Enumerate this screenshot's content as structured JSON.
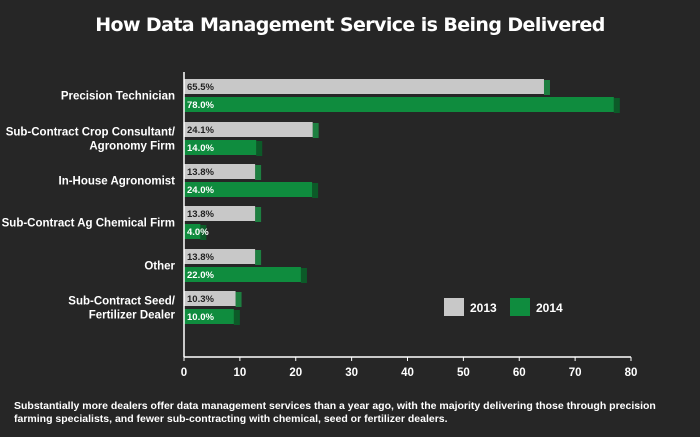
{
  "title": "How Data Management Service is Being Delivered",
  "footnote": "Substantially more dealers offer data management services than a year ago, with the majority delivering those through precision farming specialists, and fewer sub-contracting with chemical, seed or fertilizer dealers.",
  "colors": {
    "background": "#262626",
    "series_2013": "#c8c8c8",
    "series_2014": "#0f8c3e",
    "shade_2013": "#1d7f40",
    "shade_2014": "#0c5a28"
  },
  "chart_data": {
    "type": "bar",
    "orientation": "horizontal",
    "title": "How Data Management Service is Being Delivered",
    "categories": [
      [
        "Precision Technician"
      ],
      [
        "Sub-Contract Crop Consultant/",
        "Agronomy Firm"
      ],
      [
        "In-House Agronomist"
      ],
      [
        "Sub-Contract Ag Chemical Firm"
      ],
      [
        "Other"
      ],
      [
        "Sub-Contract Seed/",
        "Fertilizer Dealer"
      ]
    ],
    "series": [
      {
        "name": "2013",
        "values": [
          65.5,
          24.1,
          13.8,
          13.8,
          13.8,
          10.3
        ],
        "labels": [
          "65.5%",
          "24.1%",
          "13.8%",
          "13.8%",
          "13.8%",
          "10.3%"
        ]
      },
      {
        "name": "2014",
        "values": [
          78.0,
          14.0,
          24.0,
          4.0,
          22.0,
          10.0
        ],
        "labels": [
          "78.0%",
          "14.0%",
          "24.0%",
          "4.0%",
          "22.0%",
          "10.0%"
        ]
      }
    ],
    "xlim": [
      0,
      80
    ],
    "xticks": [
      "0",
      "10",
      "20",
      "30",
      "40",
      "50",
      "60",
      "70",
      "80"
    ],
    "xlabel": "",
    "ylabel": "",
    "legend_position": "bottom-right"
  }
}
